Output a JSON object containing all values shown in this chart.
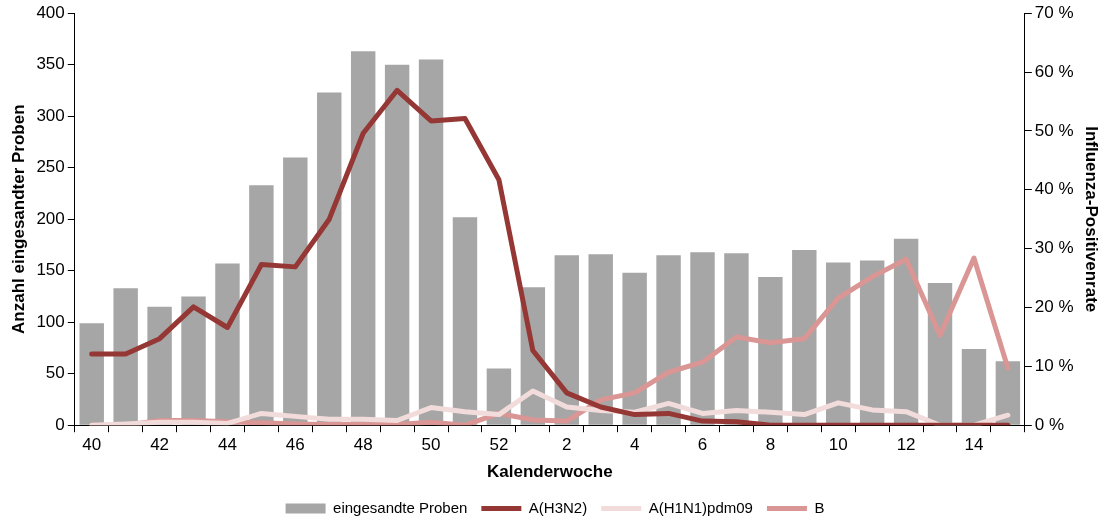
{
  "chart_data": {
    "type": "bar",
    "xlabel": "Kalenderwoche",
    "ylabel": "Anzahl eingesandter Proben",
    "y2label": "Influenza-Positivenrate",
    "categories": [
      "40",
      null,
      "42",
      null,
      "44",
      null,
      "46",
      null,
      "48",
      null,
      "50",
      null,
      "52",
      null,
      "2",
      null,
      "4",
      null,
      "6",
      null,
      "8",
      null,
      "10",
      null,
      "12",
      null,
      "14",
      null
    ],
    "series": [
      {
        "name": "eingesandte Proben",
        "color": "#a6a6a6",
        "values": [
          99,
          133,
          115,
          125,
          157,
          233,
          260,
          323,
          363,
          350,
          355,
          202,
          55,
          134,
          165,
          166,
          148,
          165,
          168,
          167,
          144,
          170,
          158,
          160,
          181,
          138,
          74,
          62
        ]
      },
      {
        "name": "A(H3N2)",
        "type": "line",
        "axis": "y2",
        "color": "#953735",
        "values": [
          12.1,
          12.1,
          14.7,
          20.1,
          16.6,
          27.3,
          26.9,
          35.0,
          49.6,
          56.9,
          51.7,
          52.1,
          41.7,
          12.7,
          5.5,
          3.1,
          1.8,
          2.0,
          0.7,
          0.6,
          0,
          0,
          0,
          0,
          0,
          0,
          0,
          0
        ]
      },
      {
        "name": "A(H1N1)pdm09",
        "type": "line",
        "axis": "y2",
        "color": "#f2dcdb",
        "values": [
          0,
          0.2,
          0.5,
          0.5,
          0.3,
          2.0,
          1.5,
          1.0,
          1.0,
          0.8,
          3.0,
          2.3,
          1.8,
          5.8,
          3.1,
          2.5,
          2.2,
          3.7,
          2.0,
          2.5,
          2.2,
          1.8,
          3.8,
          2.6,
          2.3,
          0,
          0,
          1.7
        ]
      },
      {
        "name": "B",
        "type": "line",
        "axis": "y2",
        "color": "#d99694",
        "values": [
          0,
          0,
          0.8,
          0.8,
          0.6,
          0.4,
          0.2,
          0.1,
          0.1,
          0.1,
          0.5,
          0,
          2.0,
          0.9,
          0.7,
          4.3,
          5.5,
          9.0,
          10.7,
          15.0,
          14.0,
          14.7,
          21.6,
          25.2,
          28.2,
          15.3,
          28.4,
          9.7
        ]
      }
    ],
    "ylim": [
      0,
      400
    ],
    "yticks": [
      0,
      50,
      100,
      150,
      200,
      250,
      300,
      350,
      400
    ],
    "y2lim": [
      0,
      70
    ],
    "y2ticks": [
      {
        "value": 0,
        "label": "0 %"
      },
      {
        "value": 10,
        "label": "10 %"
      },
      {
        "value": 20,
        "label": "20 %"
      },
      {
        "value": 30,
        "label": "30 %"
      },
      {
        "value": 40,
        "label": "40 %"
      },
      {
        "value": 50,
        "label": "50 %"
      },
      {
        "value": 60,
        "label": "60 %"
      },
      {
        "value": 70,
        "label": "70 %"
      }
    ],
    "grid": false,
    "legend": "bottom"
  }
}
